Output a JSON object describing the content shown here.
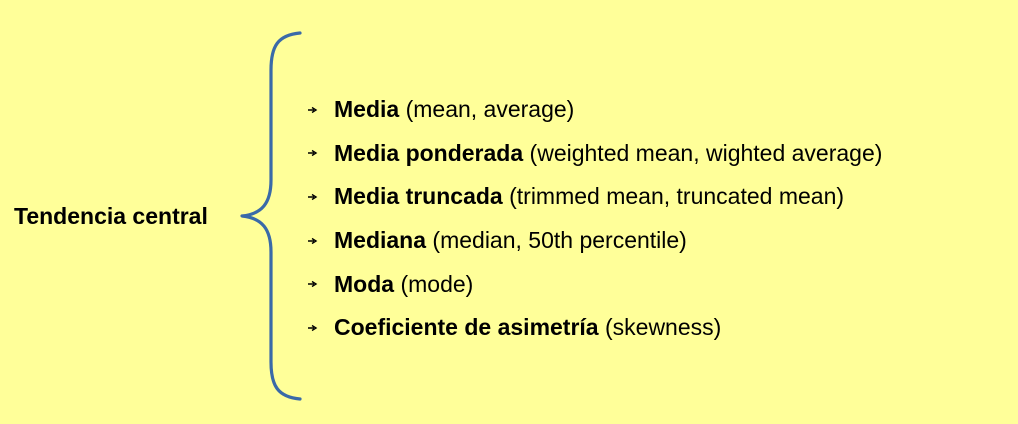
{
  "root": {
    "label": "Tendencia central"
  },
  "colors": {
    "background": "#ffff99",
    "brace": "#3a6aa8",
    "text": "#000000"
  },
  "items": [
    {
      "term": "Media",
      "gloss": "(mean, average)"
    },
    {
      "term": "Media ponderada",
      "gloss": "(weighted mean, wighted average)"
    },
    {
      "term": "Media truncada",
      "gloss": "(trimmed mean, truncated mean)"
    },
    {
      "term": "Mediana",
      "gloss": "(median, 50th percentile)"
    },
    {
      "term": "Moda",
      "gloss": "(mode)"
    },
    {
      "term": "Coeficiente de asimetría",
      "gloss": "(skewness)"
    }
  ],
  "icons": {
    "bullet": "arrow-right-icon",
    "brace": "curly-brace-icon"
  }
}
